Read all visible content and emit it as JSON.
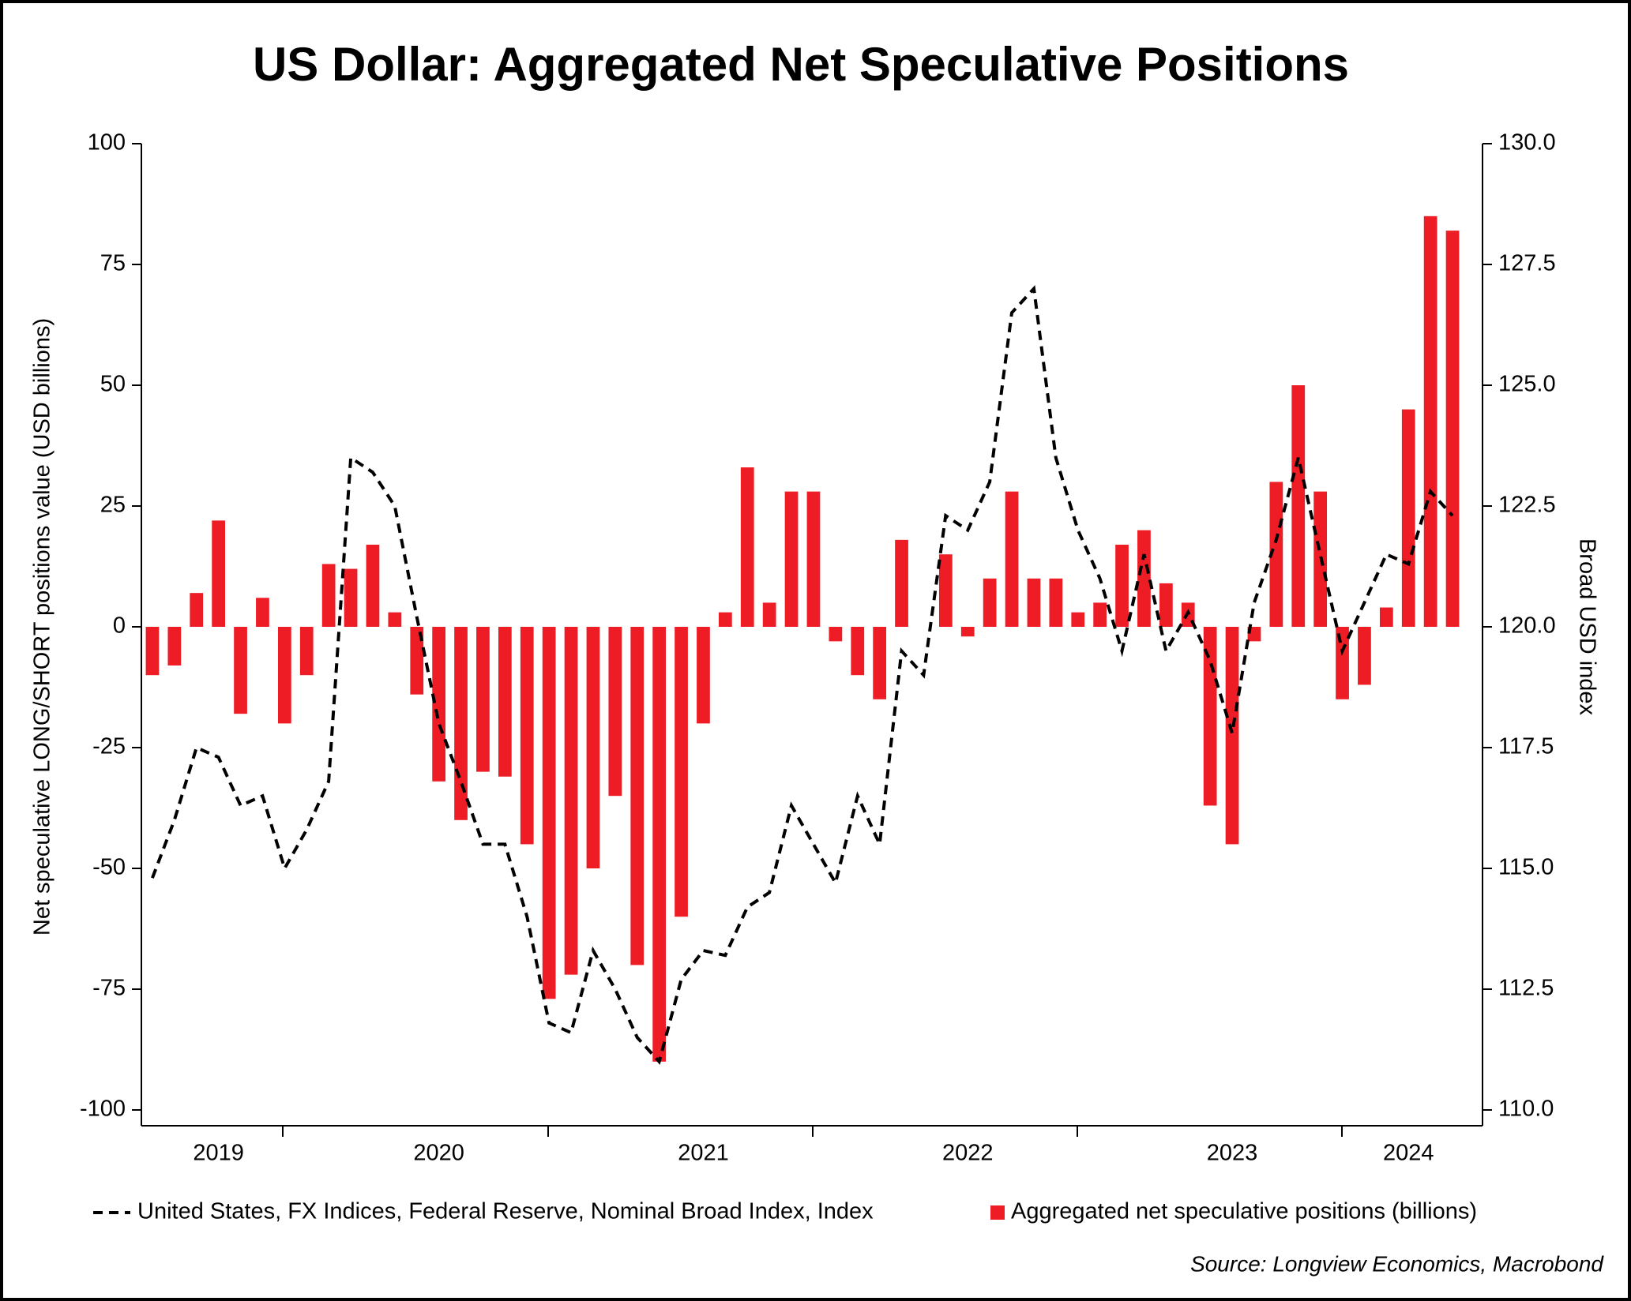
{
  "chart_data": {
    "type": "bar_line",
    "title": "US Dollar: Aggregated Net Speculative Positions",
    "ylabel": "Net speculative LONG/SHORT positions value (USD billions)",
    "y2label": "Broad USD index",
    "source": "Source: Longview Economics, Macrobond",
    "categories": [
      null,
      null,
      null,
      "2019",
      null,
      null,
      null,
      null,
      null,
      null,
      null,
      null,
      null,
      "2020",
      null,
      null,
      null,
      null,
      null,
      null,
      null,
      null,
      null,
      null,
      null,
      "2021",
      null,
      null,
      null,
      null,
      null,
      null,
      null,
      null,
      null,
      null,
      null,
      "2022",
      null,
      null,
      null,
      null,
      null,
      null,
      null,
      null,
      null,
      null,
      null,
      "2023",
      null,
      null,
      null,
      null,
      null,
      null,
      null,
      "2024",
      null,
      null
    ],
    "ylim": [
      -100,
      100
    ],
    "yticks": [
      -100,
      -75,
      -50,
      -25,
      0,
      25,
      50,
      75,
      100
    ],
    "y2lim": [
      110,
      130
    ],
    "y2ticks": [
      {
        "value": 110,
        "label": "110.0"
      },
      112.5,
      {
        "value": 115,
        "label": "115.0"
      },
      117.5,
      {
        "value": 120,
        "label": "120.0"
      },
      122.5,
      {
        "value": 125,
        "label": "125.0"
      },
      127.5,
      {
        "value": 130,
        "label": "130.0"
      }
    ],
    "series": [
      {
        "name": "United States, FX Indices, Federal Reserve, Nominal Broad Index, Index",
        "kind": "line",
        "axis": "y2",
        "color": "#000000",
        "values": [
          114.8,
          116,
          117.5,
          117.3,
          116.3,
          116.5,
          115,
          115.8,
          116.8,
          123.5,
          123.2,
          122.5,
          120.2,
          118,
          116.8,
          115.5,
          115.5,
          114,
          111.8,
          111.6,
          113.3,
          112.5,
          111.5,
          111,
          112.7,
          113.3,
          113.2,
          114.2,
          114.5,
          116.3,
          115.5,
          114.7,
          116.5,
          115.5,
          119.5,
          119,
          122.3,
          122,
          123,
          126.5,
          127,
          123.5,
          122,
          121,
          119.5,
          121.5,
          119.5,
          120.3,
          119.3,
          117.8,
          120.5,
          121.8,
          123.5,
          121.5,
          119.5,
          120.5,
          121.5,
          121.3,
          122.8,
          122.3
        ]
      },
      {
        "name": "Aggregated net speculative positions (billions)",
        "kind": "bar",
        "color": "#ee1c25",
        "values": [
          -10,
          -8,
          7,
          22,
          -18,
          6,
          -20,
          -10,
          13,
          12,
          17,
          3,
          -14,
          -32,
          -40,
          -30,
          -31,
          -45,
          -77,
          -72,
          -50,
          -35,
          -70,
          -90,
          -60,
          -20,
          3,
          33,
          5,
          28,
          28,
          -3,
          -10,
          -15,
          18,
          0,
          15,
          -2,
          10,
          28,
          10,
          10,
          3,
          5,
          17,
          20,
          9,
          5,
          -37,
          -45,
          -3,
          30,
          50,
          28,
          -15,
          -12,
          4,
          45,
          85,
          82
        ]
      }
    ]
  }
}
